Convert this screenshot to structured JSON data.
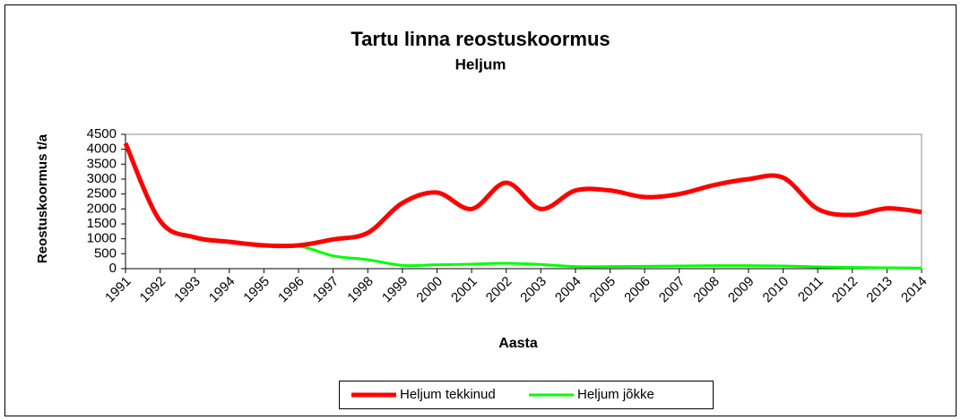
{
  "chart_data": {
    "type": "line",
    "title": "Tartu linna reostuskoormus",
    "subtitle": "Heljum",
    "x_label": "Aasta",
    "y_label": "Reostuskoormus t/a",
    "categories": [
      "1991",
      "1992",
      "1993",
      "1994",
      "1995",
      "1996",
      "1997",
      "1998",
      "1999",
      "2000",
      "2001",
      "2002",
      "2003",
      "2004",
      "2005",
      "2006",
      "2007",
      "2008",
      "2009",
      "2010",
      "2011",
      "2012",
      "2013",
      "2014"
    ],
    "series": [
      {
        "name": "Heljum tekkinud",
        "color": "#ff0000",
        "values": [
          4200,
          1600,
          1050,
          900,
          780,
          780,
          980,
          1200,
          2200,
          2550,
          2000,
          2880,
          2000,
          2620,
          2620,
          2400,
          2500,
          2800,
          3000,
          3050,
          2000,
          1800,
          2020,
          1900
        ]
      },
      {
        "name": "Heljum jõkke",
        "color": "#00ff00",
        "values": [
          4150,
          1580,
          1020,
          880,
          760,
          760,
          430,
          300,
          110,
          130,
          150,
          180,
          140,
          70,
          70,
          80,
          90,
          100,
          100,
          90,
          60,
          40,
          30,
          20
        ]
      }
    ],
    "ylim": [
      0,
      4500
    ],
    "yticks": [
      0,
      500,
      1000,
      1500,
      2000,
      2500,
      3000,
      3500,
      4000,
      4500
    ],
    "legend": "bottom"
  }
}
